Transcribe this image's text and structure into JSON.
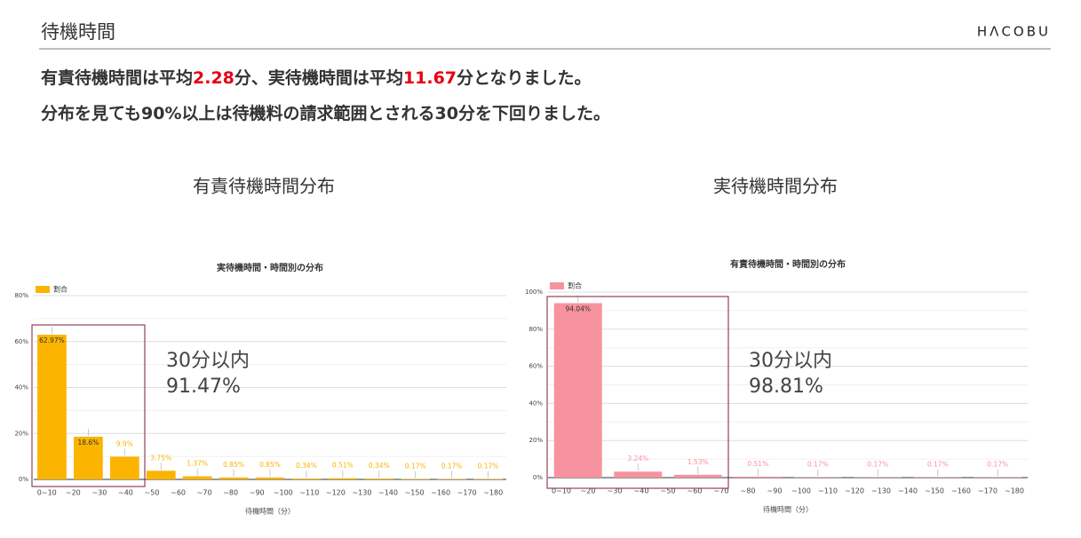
{
  "header": {
    "title": "待機時間",
    "logo": "HΛCOBU"
  },
  "headline": [
    [
      {
        "text": "有責待機時間は平均"
      },
      {
        "text": "2.28",
        "highlight": true
      },
      {
        "text": "分、実待機時間は平均"
      },
      {
        "text": "11.67",
        "highlight": true
      },
      {
        "text": "分となりました。"
      }
    ],
    [
      {
        "text": "分布を見ても90%以上は待機料の請求範囲とされる30分を下回りました。"
      }
    ]
  ],
  "sections": [
    "有責待機時間分布",
    "実待機時間分布"
  ],
  "chart_data": [
    {
      "type": "bar",
      "title": "実待機時間・時間別の分布",
      "legend": "割合",
      "color": "#fbb400",
      "values": [
        62.97,
        18.6,
        9.9,
        3.75,
        1.37,
        0.85,
        0.85,
        0.34,
        0.51,
        0.34,
        0.17,
        0.17,
        0.17
      ],
      "value_labels": [
        "62.97%",
        "18.6%",
        "9.9%",
        "3.75%",
        "1.37%",
        "0.85%",
        "0.85%",
        "0.34%",
        "0.51%",
        "0.34%",
        "0.17%",
        "0.17%",
        "0.17%"
      ],
      "x_labels": [
        "0~10",
        "~20",
        "~30",
        "~40",
        "~50",
        "~60",
        "~70",
        "~80",
        "~90",
        "~100",
        "~110",
        "~120",
        "~130",
        "~140",
        "~150",
        "~160",
        "~170",
        "~180"
      ],
      "xlabel": "待機時間（分）",
      "ylim": [
        0,
        80
      ],
      "yticks": [
        {
          "value": 0,
          "label": "0%"
        },
        {
          "value": 20,
          "label": "20%"
        },
        {
          "value": 40,
          "label": "40%"
        },
        {
          "value": 60,
          "label": "60%"
        },
        {
          "value": 80,
          "label": "80%"
        }
      ],
      "minor_yticks": [
        10,
        30,
        50,
        70
      ],
      "grid": true,
      "annotation": [
        "30分以内",
        "91.47%"
      ]
    },
    {
      "type": "bar",
      "title": "有責待機時間・時間別の分布",
      "legend": "割合",
      "color": "#f7939e",
      "values": [
        94.04,
        3.24,
        1.53,
        0.51,
        0.17,
        0.17,
        0.17,
        0.17
      ],
      "value_labels": [
        "94.04%",
        "3.24%",
        "1.53%",
        "0.51%",
        "0.17%",
        "0.17%",
        "0.17%",
        "0.17%"
      ],
      "x_labels": [
        "0~10",
        "~20",
        "~30",
        "~40",
        "~50",
        "~60",
        "~70",
        "~80",
        "~90",
        "~100",
        "~110",
        "~120",
        "~130",
        "~140",
        "~150",
        "~160",
        "~170",
        "~180"
      ],
      "xlabel": "待機時間（分）",
      "ylim": [
        0,
        100
      ],
      "yticks": [
        {
          "value": 0,
          "label": "0%"
        },
        {
          "value": 20,
          "label": "20%"
        },
        {
          "value": 40,
          "label": "40%"
        },
        {
          "value": 60,
          "label": "60%"
        },
        {
          "value": 80,
          "label": "80%"
        },
        {
          "value": 100,
          "label": "100%"
        }
      ],
      "minor_yticks": [
        10,
        30,
        50,
        70,
        90
      ],
      "grid": true,
      "annotation": [
        "30分以内",
        "98.81%"
      ]
    }
  ]
}
